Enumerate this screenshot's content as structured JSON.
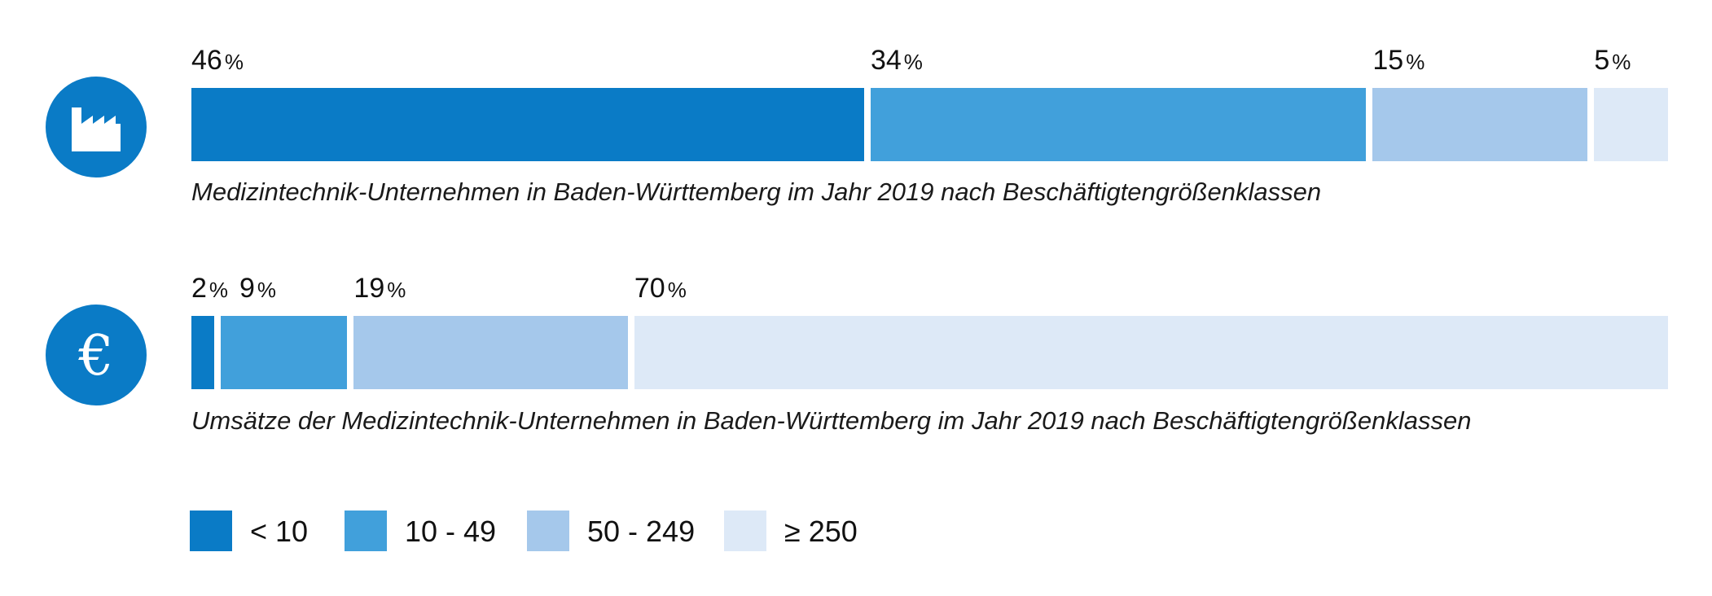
{
  "chart_data": [
    {
      "type": "bar",
      "subtype": "100%-stacked-horizontal",
      "icon": "factory-icon",
      "caption": "Medizintechnik-Unternehmen in Baden-Württemberg im Jahr 2019 nach Beschäftigtengrößenklassen",
      "categories": [
        "< 10",
        "10 - 49",
        "50 - 249",
        "≥ 250"
      ],
      "values": [
        46,
        34,
        15,
        5
      ],
      "unit": "%"
    },
    {
      "type": "bar",
      "subtype": "100%-stacked-horizontal",
      "icon": "euro-icon",
      "caption": "Umsätze der Medizintechnik-Unternehmen in Baden-Württemberg im Jahr 2019 nach Beschäftigtengrößenklassen",
      "categories": [
        "< 10",
        "10 - 49",
        "50 - 249",
        "≥ 250"
      ],
      "values": [
        2,
        9,
        19,
        70
      ],
      "unit": "%"
    }
  ],
  "legend": [
    {
      "label": "< 10",
      "color": "#0a7bc6"
    },
    {
      "label": "10 - 49",
      "color": "#41a0db"
    },
    {
      "label": "50 - 249",
      "color": "#a5c8eb"
    },
    {
      "label": "≥ 250",
      "color": "#dde9f7"
    }
  ],
  "icon_color": "#0a7bc6"
}
